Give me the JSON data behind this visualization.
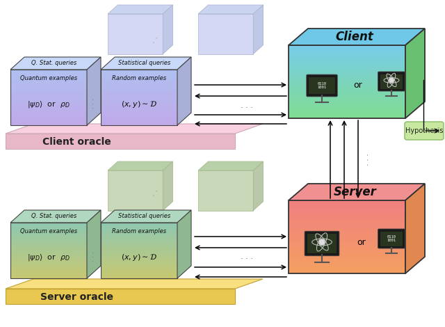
{
  "client_oracle_label": "Client oracle",
  "server_oracle_label": "Server oracle",
  "client_label": "Client",
  "server_label": "Server",
  "hypothesis_label": "Hypothesis",
  "cube1_top": "Q. Stat. queries",
  "cube2_top": "Statistical queries",
  "cube1_front": "Quantum examples",
  "cube2_front": "Random examples",
  "cube1_math": "$|\\psi_D\\rangle$  or  $\\rho_D$",
  "cube2_math": "$(x, y) \\sim \\mathcal{D}$",
  "client_cube_grad_top": "#b0c0f0",
  "client_cube_grad_bot": "#c0a8e8",
  "client_cube_top_face": "#c8d8f8",
  "client_cube_side_face": "#a8b0d8",
  "client_ghost_color": "#d8ddf0",
  "server_cube_grad_top": "#90c8b0",
  "server_cube_grad_bot": "#c8c870",
  "server_cube_top_face": "#b0d8c0",
  "server_cube_side_face": "#90b890",
  "server_ghost_color": "#c8d8b8",
  "client_box_top_face": "#70c8e8",
  "client_box_front_top": "#78cce8",
  "client_box_front_bot": "#80dd90",
  "client_box_side": "#68c070",
  "server_box_top_face": "#f09090",
  "server_box_front_top": "#f08080",
  "server_box_front_bot": "#f4a060",
  "server_box_side": "#e08850",
  "platform_client_top": "#f9d0e0",
  "platform_client_side": "#e8b8c8",
  "platform_server_top": "#f8e080",
  "platform_server_side": "#e8c850",
  "hypothesis_fill": "#c8e8a0",
  "hypothesis_edge": "#88bb66"
}
